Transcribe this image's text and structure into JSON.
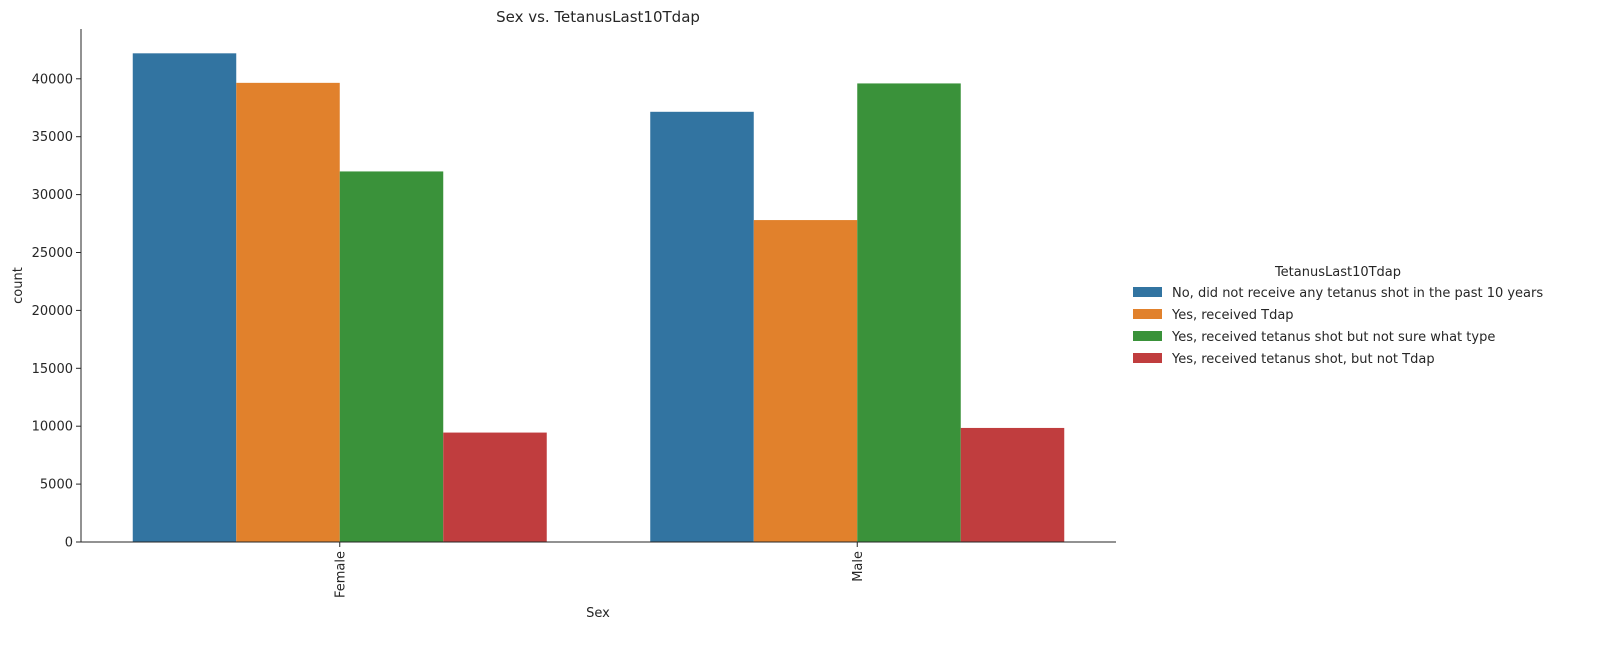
{
  "chart_data": {
    "type": "bar",
    "title": "Sex vs. TetanusLast10Tdap",
    "xlabel": "Sex",
    "ylabel": "count",
    "categories": [
      "Female",
      "Male"
    ],
    "ylim": [
      0,
      44300
    ],
    "yticks": [
      0,
      5000,
      10000,
      15000,
      20000,
      25000,
      30000,
      35000,
      40000
    ],
    "grid": false,
    "legend_title": "TetanusLast10Tdap",
    "legend_position": "right",
    "series": [
      {
        "name": "No, did not receive any tetanus shot in the past 10 years",
        "color": "#3274a1",
        "values": [
          42200,
          37150
        ]
      },
      {
        "name": "Yes, received Tdap",
        "color": "#e1812c",
        "values": [
          39650,
          27800
        ]
      },
      {
        "name": "Yes, received tetanus shot but not sure what type",
        "color": "#3a923a",
        "values": [
          32000,
          39600
        ]
      },
      {
        "name": "Yes, received tetanus shot, but not Tdap",
        "color": "#c03d3e",
        "values": [
          9450,
          9850
        ]
      }
    ]
  }
}
